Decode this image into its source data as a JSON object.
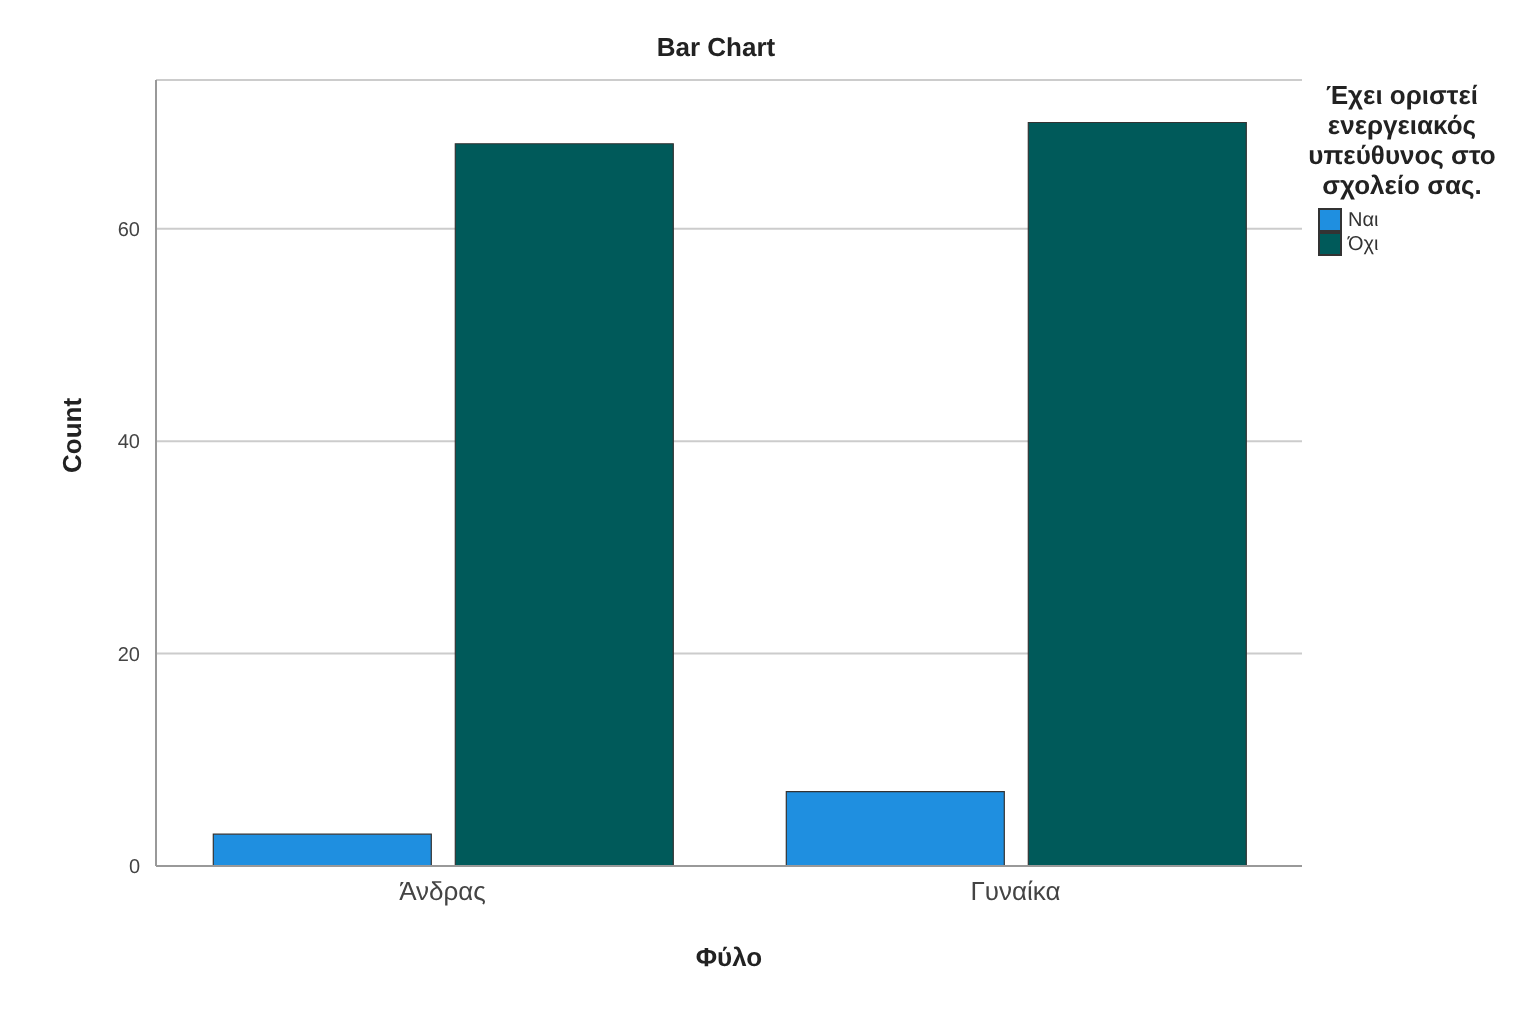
{
  "chart_data": {
    "type": "bar",
    "title": "Bar Chart",
    "xlabel": "Φύλο",
    "ylabel": "Count",
    "legend_title": "Έχει οριστεί ενεργειακός υπεύθυνος στο σχολείο σας.",
    "categories": [
      "Άνδρας",
      "Γυναίκα"
    ],
    "series": [
      {
        "name": "Ναι",
        "color": "#1f8fe0",
        "values": [
          3,
          7
        ]
      },
      {
        "name": "Όχι",
        "color": "#005a5a",
        "values": [
          68,
          70
        ]
      }
    ],
    "ylim": [
      0,
      74
    ],
    "yticks": [
      0,
      20,
      40,
      60
    ],
    "grid": "y",
    "legend": "top right"
  }
}
